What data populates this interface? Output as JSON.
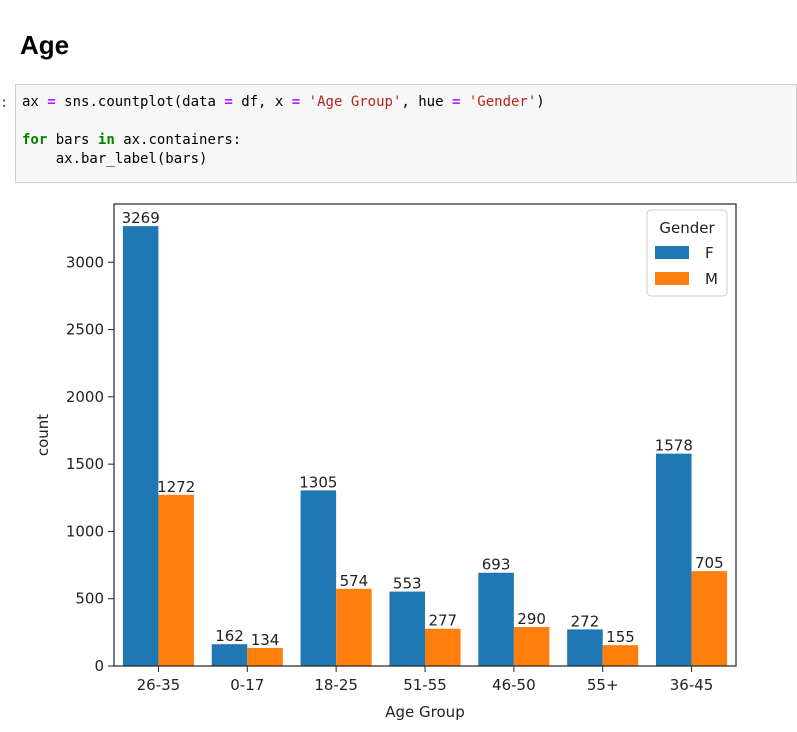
{
  "heading": "Age",
  "prompt": ":",
  "code": {
    "line1": {
      "a": "ax",
      "eq": "=",
      "b": "sns.countplot(data",
      "c": "df, x",
      "d": "'Age Group'",
      "e": ", hue",
      "f": "'Gender'",
      "g": ")"
    },
    "line3": {
      "kw1": "for",
      "a": "bars",
      "kw2": "in",
      "b": "ax.containers:"
    },
    "line4": "ax.bar_label(bars)"
  },
  "chart_data": {
    "type": "bar",
    "categories": [
      "26-35",
      "0-17",
      "18-25",
      "51-55",
      "46-50",
      "55+",
      "36-45"
    ],
    "series": [
      {
        "name": "F",
        "values": [
          3269,
          162,
          1305,
          553,
          693,
          272,
          1578
        ],
        "color": "#1f77b4"
      },
      {
        "name": "M",
        "values": [
          1272,
          134,
          574,
          277,
          290,
          155,
          705
        ],
        "color": "#ff7f0e"
      }
    ],
    "xlabel": "Age Group",
    "ylabel": "count",
    "ylim": [
      0,
      3433
    ],
    "yticks": [
      0,
      500,
      1000,
      1500,
      2000,
      2500,
      3000
    ],
    "legend": {
      "title": "Gender",
      "position": "upper right"
    },
    "grid": false
  }
}
